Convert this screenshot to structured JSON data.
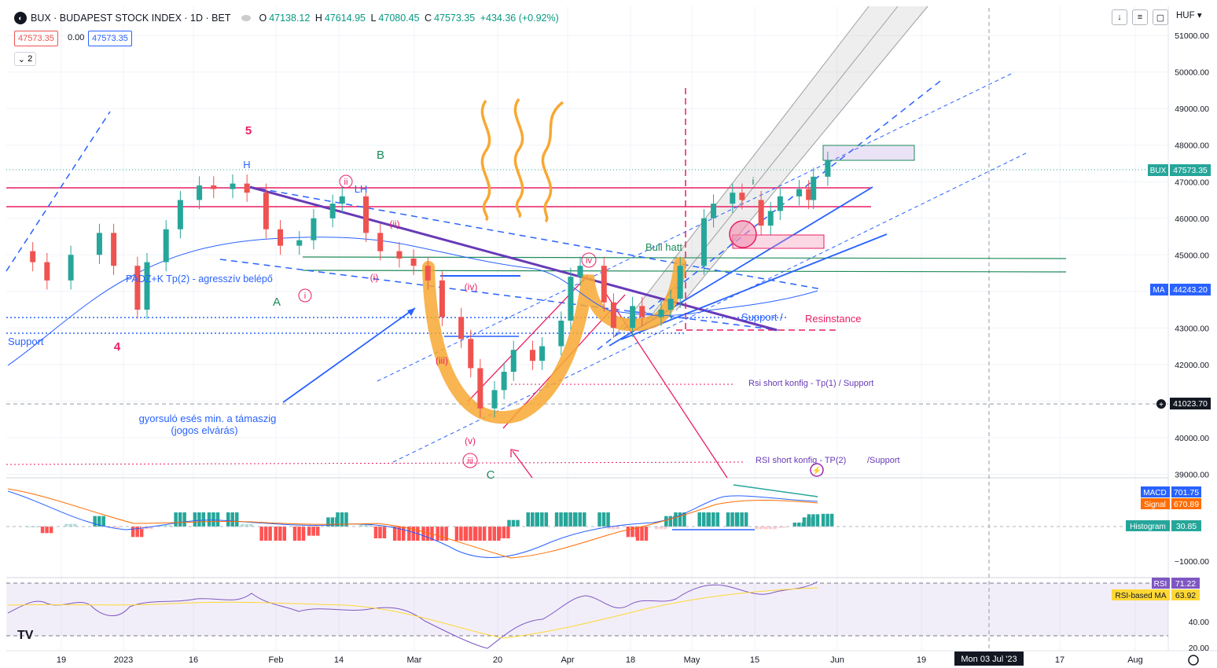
{
  "header": {
    "symbol_title": "BUX · BUDAPEST STOCK INDEX · 1D · BET",
    "open_label": "O",
    "open": "47138.12",
    "high_label": "H",
    "high": "47614.95",
    "low_label": "L",
    "low": "47080.45",
    "close_label": "C",
    "close": "47573.35",
    "change": "+434.36 (+0.92%)",
    "price_box_left": "47573.35",
    "spread": "0.00",
    "price_box_right": "47573.35",
    "legend_count": "2",
    "currency": "HUF"
  },
  "colors": {
    "up": "#26a69a",
    "down": "#ef5350",
    "pink": "#e91e63",
    "blue": "#2962ff",
    "orange": "#f7a833",
    "purple": "#673ab7",
    "green": "#1e8a5a"
  },
  "chart_data": [
    {
      "type": "candlestick",
      "title": "BUX · BUDAPEST STOCK INDEX · 1D · BET",
      "x_tick_labels": [
        "19",
        "2023",
        "16",
        "Feb",
        "14",
        "Mar",
        "20",
        "Apr",
        "18",
        "May",
        "15",
        "Jun",
        "19",
        "Mon 03 Jul '23",
        "17",
        "Aug"
      ],
      "crosshair_date": "Mon 03 Jul '23",
      "y_tick_labels": [
        "51000.00",
        "50000.00",
        "49000.00",
        "48000.00",
        "47000.00",
        "46000.00",
        "45000.00",
        "44000.00",
        "43000.00",
        "42000.00",
        "41000.00",
        "40000.00",
        "39000.00"
      ],
      "ylim": [
        38900,
        51800
      ],
      "last_price": {
        "label": "BUX",
        "value": "47573.35"
      },
      "ma_value": {
        "label": "MA",
        "value": "44243.20"
      },
      "crosshair_price": "41023.70",
      "close_points": [
        {
          "x": "2022-12-13",
          "y": 44800
        },
        {
          "x": "2022-12-16",
          "y": 44300
        },
        {
          "x": "2022-12-21",
          "y": 45000
        },
        {
          "x": "2022-12-27",
          "y": 45600
        },
        {
          "x": "2022-12-30",
          "y": 44700
        },
        {
          "x": "2023-01-04",
          "y": 43500
        },
        {
          "x": "2023-01-06",
          "y": 44800
        },
        {
          "x": "2023-01-10",
          "y": 45700
        },
        {
          "x": "2023-01-13",
          "y": 46500
        },
        {
          "x": "2023-01-17",
          "y": 46900
        },
        {
          "x": "2023-01-20",
          "y": 46800
        },
        {
          "x": "2023-01-24",
          "y": 46950
        },
        {
          "x": "2023-01-27",
          "y": 46700
        },
        {
          "x": "2023-01-31",
          "y": 45700
        },
        {
          "x": "2023-02-03",
          "y": 45250
        },
        {
          "x": "2023-02-07",
          "y": 45400
        },
        {
          "x": "2023-02-10",
          "y": 46000
        },
        {
          "x": "2023-02-14",
          "y": 46400
        },
        {
          "x": "2023-02-16",
          "y": 46600
        },
        {
          "x": "2023-02-21",
          "y": 45600
        },
        {
          "x": "2023-02-24",
          "y": 45100
        },
        {
          "x": "2023-02-28",
          "y": 44900
        },
        {
          "x": "2023-03-03",
          "y": 44700
        },
        {
          "x": "2023-03-06",
          "y": 44300
        },
        {
          "x": "2023-03-09",
          "y": 43300
        },
        {
          "x": "2023-03-13",
          "y": 42700
        },
        {
          "x": "2023-03-15",
          "y": 41900
        },
        {
          "x": "2023-03-17",
          "y": 40800
        },
        {
          "x": "2023-03-20",
          "y": 41300
        },
        {
          "x": "2023-03-22",
          "y": 41800
        },
        {
          "x": "2023-03-24",
          "y": 42400
        },
        {
          "x": "2023-03-28",
          "y": 42100
        },
        {
          "x": "2023-03-30",
          "y": 42500
        },
        {
          "x": "2023-04-03",
          "y": 43200
        },
        {
          "x": "2023-04-05",
          "y": 44400
        },
        {
          "x": "2023-04-07",
          "y": 44700
        },
        {
          "x": "2023-04-12",
          "y": 43700
        },
        {
          "x": "2023-04-14",
          "y": 43000
        },
        {
          "x": "2023-04-18",
          "y": 43600
        },
        {
          "x": "2023-04-20",
          "y": 43300
        },
        {
          "x": "2023-04-24",
          "y": 43500
        },
        {
          "x": "2023-04-26",
          "y": 43800
        },
        {
          "x": "2023-04-28",
          "y": 44700
        },
        {
          "x": "2023-05-03",
          "y": 46000
        },
        {
          "x": "2023-05-05",
          "y": 46400
        },
        {
          "x": "2023-05-09",
          "y": 46700
        },
        {
          "x": "2023-05-11",
          "y": 46500
        },
        {
          "x": "2023-05-15",
          "y": 45800
        },
        {
          "x": "2023-05-17",
          "y": 46200
        },
        {
          "x": "2023-05-19",
          "y": 46600
        },
        {
          "x": "2023-05-23",
          "y": 46800
        },
        {
          "x": "2023-05-25",
          "y": 46500
        },
        {
          "x": "2023-05-26",
          "y": 47138
        },
        {
          "x": "2023-05-29",
          "y": 47573
        }
      ]
    },
    {
      "type": "bar",
      "title": "MACD",
      "series_labels": [
        {
          "label": "MACD",
          "value": "701.75"
        },
        {
          "label": "Signal",
          "value": "670.89"
        },
        {
          "label": "Histogram",
          "value": "30.85"
        }
      ],
      "y_tick_labels": [
        "−1000.00"
      ]
    },
    {
      "type": "line",
      "title": "RSI",
      "series_labels": [
        {
          "label": "RSI",
          "value": "71.22"
        },
        {
          "label": "RSI-based MA",
          "value": "63.92"
        }
      ],
      "y_tick_labels": [
        "40.00",
        "20.00"
      ]
    }
  ],
  "annotations": {
    "wave_5": "5",
    "wave_4": "4",
    "wave_H": "H",
    "wave_B": "B",
    "wave_A": "A",
    "wave_C": "C",
    "wave_ii_circ": "ii",
    "wave_i_circ": "i",
    "wave_iii_circ": "iii",
    "wave_iv_circ": "iv",
    "wave_ii_par": "(ii)",
    "wave_i_par": "(i)",
    "wave_iii_par": "(iii)",
    "wave_iv_par": "(iv)",
    "wave_v_par": "(v)",
    "lh": "LH",
    "i_small": "i",
    "support_left": "Support",
    "padz": "PADZ+K Tp(2) - agresszív belépő",
    "bull_hatt": "Bull hatt",
    "support_right": "Support /",
    "resistance": "Resinstance",
    "rsi_short_1": "Rsi short konfig - Tp(1) / Support",
    "rsi_short_2": "RSI short konfig - TP(2)",
    "support_2": "/Support",
    "gyorsulo_1": "gyorsuló esés min. a támaszig",
    "gyorsulo_2": "(jogos elvárás)"
  },
  "branding": {
    "tv_logo": "TV"
  }
}
